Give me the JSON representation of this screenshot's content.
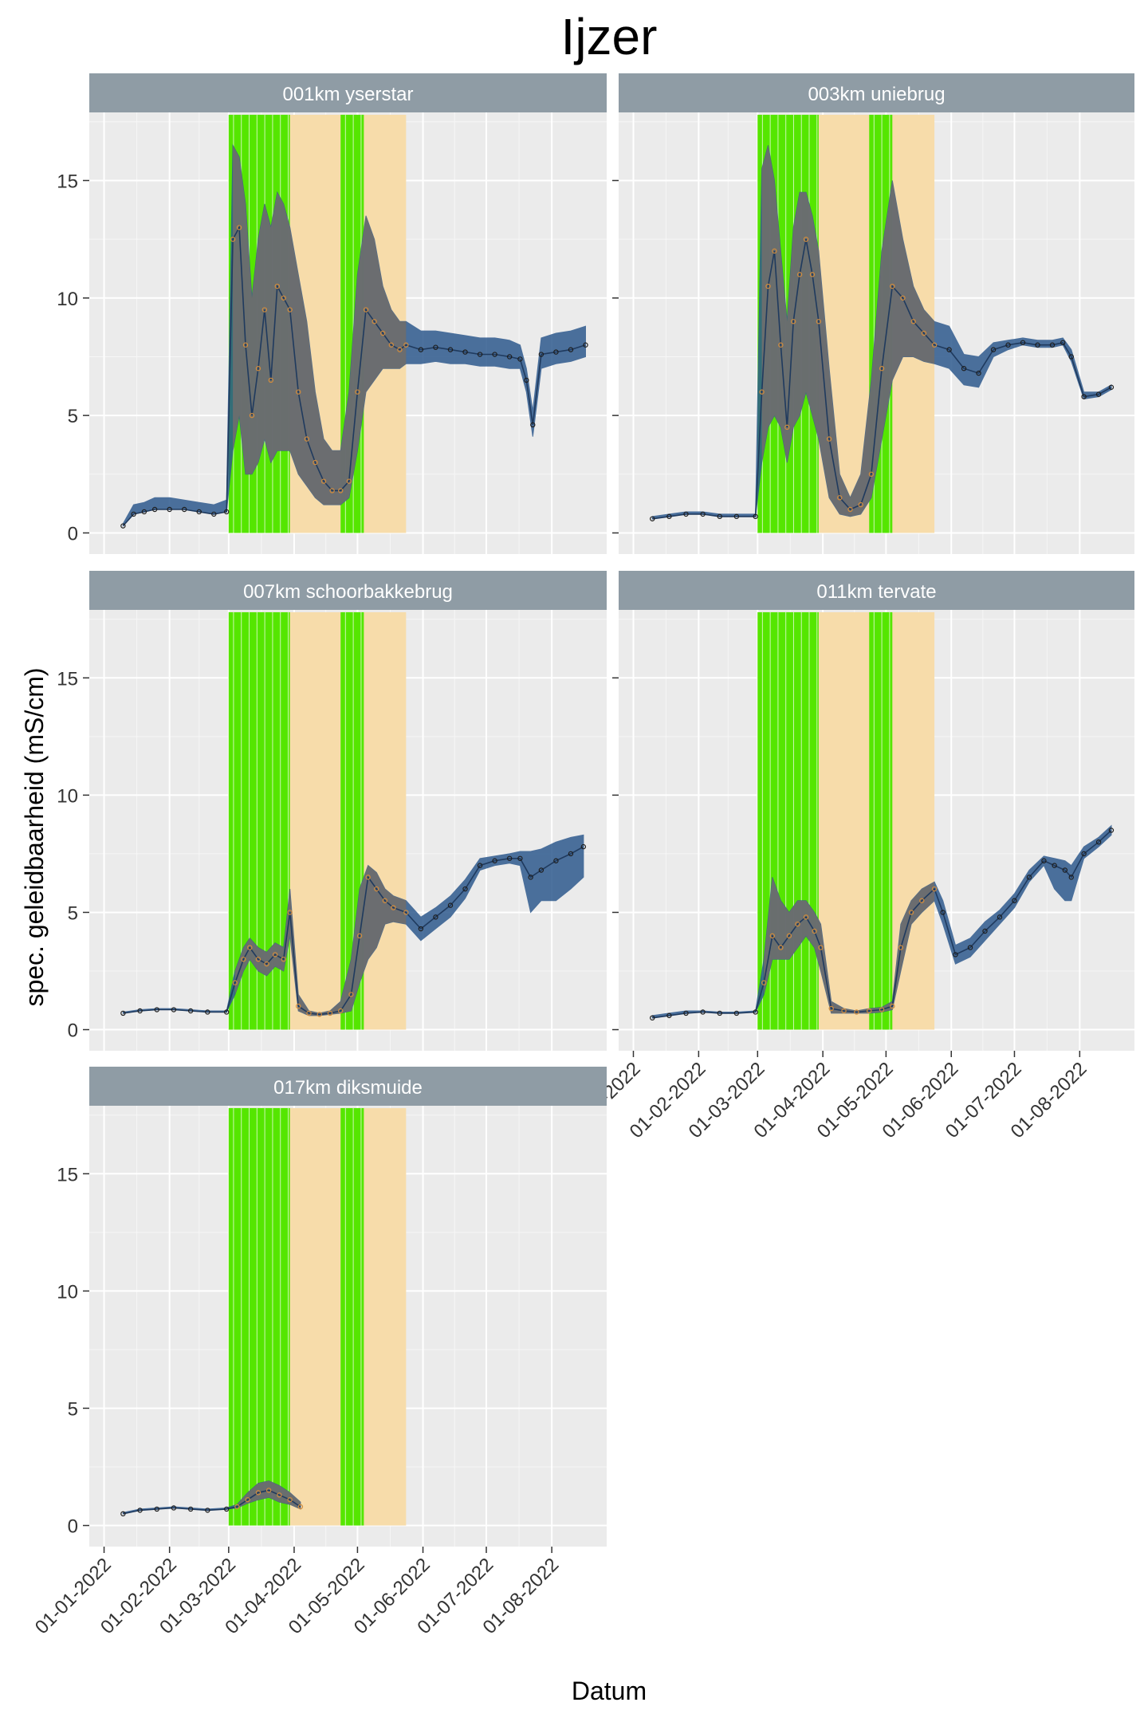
{
  "chart_data": {
    "type": "line",
    "title": "Ijzer",
    "xlabel": "Datum",
    "ylabel": "spec. geleidbaarheid (mS/cm)",
    "ylim": [
      -0.9,
      17.9
    ],
    "xlim": [
      "2021-12-25",
      "2022-08-27"
    ],
    "y_ticks": [
      0,
      5,
      10,
      15
    ],
    "x_ticks": [
      "2022-01-01",
      "2022-02-01",
      "2022-03-01",
      "2022-04-01",
      "2022-05-01",
      "2022-06-01",
      "2022-07-01",
      "2022-08-01"
    ],
    "x_tick_labels": [
      "01-01-2022",
      "01-02-2022",
      "01-03-2022",
      "01-04-2022",
      "01-05-2022",
      "01-06-2022",
      "01-07-2022",
      "01-08-2022"
    ],
    "grid": true,
    "colors": {
      "panel_bg": "#ebebeb",
      "strip_bg": "#8f9ca5",
      "strip_text": "#ffffff",
      "green_band": "#55e600",
      "orange_band": "#f7dcaa",
      "series_blue": "#2e5a8e",
      "series_grey": "#6e6e6e",
      "marker_ok": "#1e1e1e",
      "marker_orange": "#d28c3c"
    },
    "orange_band": [
      "2022-03-01",
      "2022-05-24"
    ],
    "green_bands": [
      [
        "2022-03-01",
        "2022-03-30"
      ],
      [
        "2022-04-23",
        "2022-05-04"
      ]
    ],
    "facets": [
      {
        "label": "001km yserstar",
        "x": [
          "2022-01-10",
          "2022-01-15",
          "2022-01-20",
          "2022-01-25",
          "2022-02-01",
          "2022-02-08",
          "2022-02-15",
          "2022-02-22",
          "2022-02-28",
          "2022-03-03",
          "2022-03-06",
          "2022-03-09",
          "2022-03-12",
          "2022-03-15",
          "2022-03-18",
          "2022-03-21",
          "2022-03-24",
          "2022-03-27",
          "2022-03-30",
          "2022-04-03",
          "2022-04-07",
          "2022-04-11",
          "2022-04-15",
          "2022-04-19",
          "2022-04-23",
          "2022-04-27",
          "2022-05-01",
          "2022-05-05",
          "2022-05-09",
          "2022-05-13",
          "2022-05-17",
          "2022-05-21",
          "2022-05-24",
          "2022-05-31",
          "2022-06-07",
          "2022-06-14",
          "2022-06-21",
          "2022-06-28",
          "2022-07-05",
          "2022-07-12",
          "2022-07-17",
          "2022-07-20",
          "2022-07-23",
          "2022-07-27",
          "2022-08-03",
          "2022-08-10",
          "2022-08-17"
        ],
        "y": [
          0.3,
          0.8,
          0.9,
          1.0,
          1.0,
          1.0,
          0.9,
          0.8,
          0.9,
          12.5,
          13.0,
          8.0,
          5.0,
          7.0,
          9.5,
          6.5,
          10.5,
          10.0,
          9.5,
          6.0,
          4.0,
          3.0,
          2.2,
          1.8,
          1.8,
          2.2,
          6.0,
          9.5,
          9.0,
          8.5,
          8.0,
          7.8,
          8.0,
          7.8,
          7.9,
          7.8,
          7.7,
          7.6,
          7.6,
          7.5,
          7.4,
          6.5,
          4.6,
          7.6,
          7.7,
          7.8,
          8.0
        ],
        "lower": [
          0.3,
          0.8,
          0.9,
          1.0,
          1.0,
          1.0,
          0.9,
          0.8,
          0.9,
          3.5,
          5.0,
          2.5,
          2.5,
          3.0,
          4.0,
          3.0,
          3.5,
          3.5,
          3.5,
          2.5,
          2.0,
          1.5,
          1.2,
          1.2,
          1.2,
          1.5,
          3.5,
          6.0,
          6.5,
          7.0,
          7.0,
          7.0,
          7.2,
          7.2,
          7.3,
          7.2,
          7.2,
          7.1,
          7.1,
          7.0,
          7.0,
          6.0,
          4.1,
          7.0,
          7.2,
          7.3,
          7.5
        ],
        "upper": [
          0.4,
          1.2,
          1.3,
          1.5,
          1.5,
          1.4,
          1.3,
          1.2,
          1.4,
          16.5,
          16.0,
          14.0,
          10.0,
          12.5,
          14.0,
          13.0,
          14.5,
          14.0,
          13.0,
          11.0,
          9.0,
          6.0,
          4.0,
          3.5,
          3.5,
          6.0,
          11.0,
          13.5,
          12.5,
          10.5,
          9.5,
          9.0,
          9.0,
          8.6,
          8.6,
          8.5,
          8.4,
          8.3,
          8.3,
          8.2,
          8.0,
          7.0,
          5.2,
          8.3,
          8.5,
          8.6,
          8.8
        ]
      },
      {
        "label": "003km uniebrug",
        "x": [
          "2022-01-10",
          "2022-01-18",
          "2022-01-26",
          "2022-02-03",
          "2022-02-11",
          "2022-02-19",
          "2022-02-28",
          "2022-03-03",
          "2022-03-06",
          "2022-03-09",
          "2022-03-12",
          "2022-03-15",
          "2022-03-18",
          "2022-03-21",
          "2022-03-24",
          "2022-03-27",
          "2022-03-30",
          "2022-04-04",
          "2022-04-09",
          "2022-04-14",
          "2022-04-19",
          "2022-04-24",
          "2022-04-29",
          "2022-05-04",
          "2022-05-09",
          "2022-05-14",
          "2022-05-19",
          "2022-05-24",
          "2022-05-31",
          "2022-06-07",
          "2022-06-14",
          "2022-06-21",
          "2022-06-28",
          "2022-07-05",
          "2022-07-12",
          "2022-07-19",
          "2022-07-24",
          "2022-07-28",
          "2022-08-03",
          "2022-08-10",
          "2022-08-16"
        ],
        "y": [
          0.6,
          0.7,
          0.8,
          0.8,
          0.7,
          0.7,
          0.7,
          6.0,
          10.5,
          12.0,
          8.0,
          4.5,
          9.0,
          11.0,
          12.5,
          11.0,
          9.0,
          4.0,
          1.5,
          1.0,
          1.2,
          2.5,
          7.0,
          10.5,
          10.0,
          9.0,
          8.5,
          8.0,
          7.8,
          7.0,
          6.8,
          7.8,
          8.0,
          8.1,
          8.0,
          8.0,
          8.1,
          7.5,
          5.8,
          5.9,
          6.2
        ],
        "lower": [
          0.6,
          0.7,
          0.8,
          0.8,
          0.7,
          0.7,
          0.7,
          3.0,
          4.5,
          5.0,
          4.5,
          3.0,
          4.5,
          5.0,
          6.0,
          5.0,
          4.0,
          1.5,
          0.8,
          0.7,
          0.8,
          1.5,
          4.0,
          6.5,
          7.5,
          7.5,
          7.3,
          7.2,
          7.0,
          6.3,
          6.2,
          7.5,
          7.8,
          8.0,
          7.9,
          7.9,
          8.0,
          7.3,
          5.7,
          5.8,
          6.1
        ],
        "upper": [
          0.7,
          0.8,
          0.9,
          0.9,
          0.8,
          0.8,
          0.8,
          15.5,
          16.5,
          15.0,
          12.0,
          9.0,
          13.0,
          14.5,
          14.5,
          13.5,
          12.0,
          7.0,
          2.5,
          1.5,
          2.5,
          6.5,
          12.0,
          15.0,
          12.5,
          10.5,
          9.5,
          9.0,
          8.8,
          7.6,
          7.5,
          8.1,
          8.2,
          8.3,
          8.2,
          8.2,
          8.3,
          7.8,
          6.0,
          6.0,
          6.3
        ]
      },
      {
        "label": "007km schoorbakkebrug",
        "x": [
          "2022-01-10",
          "2022-01-18",
          "2022-01-26",
          "2022-02-03",
          "2022-02-11",
          "2022-02-19",
          "2022-02-28",
          "2022-03-04",
          "2022-03-08",
          "2022-03-11",
          "2022-03-15",
          "2022-03-19",
          "2022-03-23",
          "2022-03-27",
          "2022-03-30",
          "2022-04-03",
          "2022-04-08",
          "2022-04-13",
          "2022-04-18",
          "2022-04-23",
          "2022-04-28",
          "2022-05-02",
          "2022-05-06",
          "2022-05-10",
          "2022-05-14",
          "2022-05-18",
          "2022-05-24",
          "2022-05-31",
          "2022-06-07",
          "2022-06-14",
          "2022-06-21",
          "2022-06-28",
          "2022-07-05",
          "2022-07-12",
          "2022-07-17",
          "2022-07-22",
          "2022-07-27",
          "2022-08-03",
          "2022-08-10",
          "2022-08-16"
        ],
        "y": [
          0.7,
          0.8,
          0.85,
          0.85,
          0.8,
          0.75,
          0.75,
          2.0,
          3.0,
          3.5,
          3.0,
          2.8,
          3.2,
          3.0,
          5.0,
          1.0,
          0.7,
          0.65,
          0.7,
          0.8,
          1.5,
          4.0,
          6.5,
          6.0,
          5.5,
          5.2,
          5.0,
          4.3,
          4.8,
          5.3,
          6.0,
          7.0,
          7.2,
          7.3,
          7.3,
          6.5,
          6.8,
          7.2,
          7.5,
          7.8
        ],
        "lower": [
          0.7,
          0.8,
          0.85,
          0.85,
          0.8,
          0.75,
          0.75,
          1.5,
          2.5,
          3.0,
          2.5,
          2.3,
          2.7,
          2.5,
          4.0,
          0.8,
          0.6,
          0.6,
          0.65,
          0.7,
          0.8,
          2.0,
          3.0,
          3.5,
          4.5,
          4.6,
          4.5,
          3.8,
          4.3,
          4.8,
          5.6,
          6.8,
          7.0,
          7.1,
          7.0,
          5.0,
          5.5,
          5.5,
          6.0,
          6.5
        ],
        "upper": [
          0.75,
          0.85,
          0.9,
          0.9,
          0.85,
          0.8,
          0.8,
          2.5,
          3.5,
          3.9,
          3.5,
          3.3,
          3.7,
          3.5,
          6.0,
          1.5,
          0.8,
          0.7,
          0.8,
          1.2,
          3.0,
          6.0,
          7.0,
          6.7,
          6.0,
          5.7,
          5.5,
          4.8,
          5.2,
          5.7,
          6.4,
          7.3,
          7.4,
          7.5,
          7.6,
          7.6,
          7.7,
          8.0,
          8.2,
          8.3
        ]
      },
      {
        "label": "011km tervate",
        "x": [
          "2022-01-10",
          "2022-01-18",
          "2022-01-26",
          "2022-02-03",
          "2022-02-11",
          "2022-02-19",
          "2022-02-28",
          "2022-03-04",
          "2022-03-08",
          "2022-03-12",
          "2022-03-16",
          "2022-03-20",
          "2022-03-24",
          "2022-03-28",
          "2022-03-31",
          "2022-04-05",
          "2022-04-11",
          "2022-04-17",
          "2022-04-23",
          "2022-04-29",
          "2022-05-04",
          "2022-05-08",
          "2022-05-13",
          "2022-05-18",
          "2022-05-24",
          "2022-05-28",
          "2022-06-03",
          "2022-06-10",
          "2022-06-17",
          "2022-06-24",
          "2022-07-01",
          "2022-07-08",
          "2022-07-15",
          "2022-07-20",
          "2022-07-25",
          "2022-07-28",
          "2022-08-03",
          "2022-08-10",
          "2022-08-16"
        ],
        "y": [
          0.5,
          0.6,
          0.7,
          0.75,
          0.7,
          0.7,
          0.75,
          2.0,
          4.0,
          3.5,
          4.0,
          4.5,
          4.8,
          4.2,
          3.5,
          0.9,
          0.8,
          0.75,
          0.8,
          0.85,
          1.0,
          3.5,
          5.0,
          5.5,
          6.0,
          5.0,
          3.2,
          3.5,
          4.2,
          4.8,
          5.5,
          6.5,
          7.2,
          7.0,
          6.8,
          6.5,
          7.5,
          8.0,
          8.5
        ],
        "lower": [
          0.5,
          0.6,
          0.7,
          0.75,
          0.7,
          0.7,
          0.75,
          1.5,
          3.0,
          3.0,
          3.0,
          3.5,
          4.0,
          3.5,
          2.5,
          0.7,
          0.7,
          0.7,
          0.7,
          0.75,
          0.85,
          2.5,
          4.5,
          5.0,
          5.5,
          4.5,
          2.8,
          3.1,
          3.8,
          4.5,
          5.2,
          6.3,
          7.0,
          6.0,
          5.5,
          5.5,
          7.3,
          7.8,
          8.3
        ],
        "upper": [
          0.6,
          0.7,
          0.8,
          0.8,
          0.75,
          0.75,
          0.8,
          3.0,
          6.5,
          5.5,
          5.0,
          5.5,
          5.5,
          5.0,
          4.5,
          1.2,
          0.9,
          0.8,
          0.9,
          0.95,
          1.2,
          4.5,
          5.5,
          6.0,
          6.3,
          5.5,
          3.6,
          3.9,
          4.6,
          5.1,
          5.8,
          6.8,
          7.4,
          7.3,
          7.2,
          7.0,
          7.8,
          8.2,
          8.7
        ]
      },
      {
        "label": "017km diksmuide",
        "x": [
          "2022-01-10",
          "2022-01-18",
          "2022-01-26",
          "2022-02-03",
          "2022-02-11",
          "2022-02-19",
          "2022-02-28",
          "2022-03-05",
          "2022-03-10",
          "2022-03-15",
          "2022-03-20",
          "2022-03-25",
          "2022-03-30",
          "2022-04-04"
        ],
        "y": [
          0.5,
          0.65,
          0.7,
          0.75,
          0.7,
          0.65,
          0.7,
          0.8,
          1.1,
          1.4,
          1.5,
          1.3,
          1.1,
          0.8
        ],
        "lower": [
          0.5,
          0.65,
          0.7,
          0.75,
          0.7,
          0.65,
          0.7,
          0.75,
          0.95,
          1.1,
          1.2,
          1.0,
          0.9,
          0.7
        ],
        "upper": [
          0.55,
          0.7,
          0.75,
          0.8,
          0.75,
          0.7,
          0.75,
          0.9,
          1.4,
          1.8,
          1.9,
          1.7,
          1.4,
          1.0
        ]
      }
    ]
  }
}
